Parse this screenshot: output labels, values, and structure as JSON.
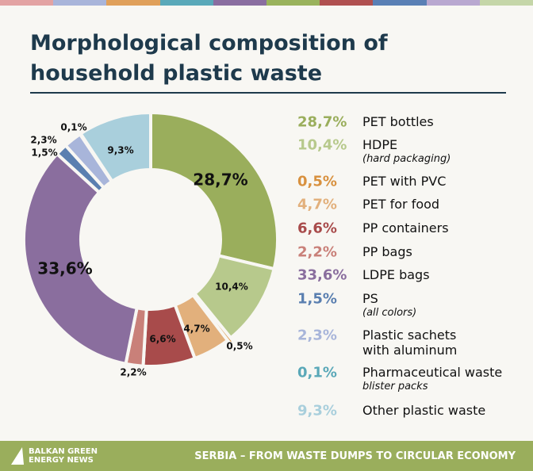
{
  "chart_data": {
    "type": "pie",
    "title": "Morphological composition of household plastic waste",
    "categories": [
      "PET bottles",
      "HDPE",
      "PET with PVC",
      "PET for food",
      "PP containers",
      "PP bags",
      "LDPE bags",
      "PS",
      "Plastic sachets with aluminum",
      "Pharmaceutical waste",
      "Other plastic waste"
    ],
    "notes": [
      null,
      "(hard packaging)",
      null,
      null,
      null,
      null,
      null,
      "(all colors)",
      null,
      "blister packs",
      null
    ],
    "values": [
      28.7,
      10.4,
      0.5,
      4.7,
      6.6,
      2.2,
      33.6,
      1.5,
      2.3,
      0.1,
      9.3
    ],
    "value_labels": [
      "28,7%",
      "10,4%",
      "0,5%",
      "4,7%",
      "6,6%",
      "2,2%",
      "33,6%",
      "1,5%",
      "2,3%",
      "0,1%",
      "9,3%"
    ],
    "colors": [
      "#9aae5c",
      "#b7c98c",
      "#d8913f",
      "#e2b07c",
      "#a84b4b",
      "#c98079",
      "#8a6e9e",
      "#5a7fb0",
      "#a8b5da",
      "#5aa8b8",
      "#a9cfdc"
    ],
    "logo": [
      "BALKAN GREEN",
      "ENERGY NEWS"
    ],
    "footer": "SERBIA – FROM WASTE DUMPS TO CIRCULAR ECONOMY"
  }
}
